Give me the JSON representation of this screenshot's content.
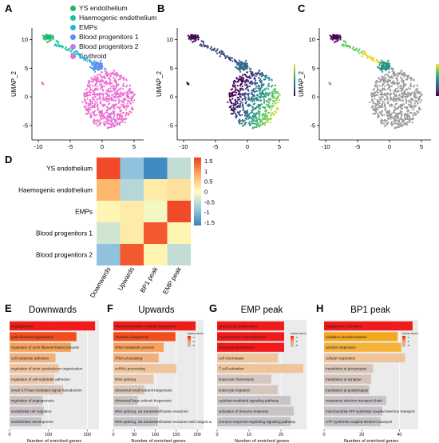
{
  "panels": {
    "A": "A",
    "B": "B",
    "C": "C",
    "D": "D",
    "E": "E",
    "F": "F",
    "G": "G",
    "H": "H"
  },
  "umap": {
    "xlabel": "UMAP_1",
    "ylabel": "UMAP_2",
    "xticks": [
      "-10",
      "-5",
      "0",
      "5"
    ],
    "yticks": [
      "10",
      "5",
      "0",
      "-5"
    ],
    "legend_A": [
      {
        "label": "YS endothelium",
        "color": "#1db86a"
      },
      {
        "label": "Haemogenic endothelium",
        "color": "#19c1a2"
      },
      {
        "label": "EMPs",
        "color": "#1fb6d9"
      },
      {
        "label": "Blood progenitors 1",
        "color": "#5b8ff0"
      },
      {
        "label": "Blood progenitors 2",
        "color": "#bd7ff5"
      },
      {
        "label": "Erythroid",
        "color": "#f06ccf"
      }
    ],
    "colorbar_B": [
      "20",
      "10",
      "0"
    ],
    "colorbar_C": [
      "8",
      "6",
      "4",
      "2",
      "0"
    ]
  },
  "chart_data": [
    {
      "type": "heatmap",
      "rows": [
        "YS endothelium",
        "Haemogenic endothelium",
        "EMPs",
        "Blood progenitors 1",
        "Blood progenitors 2"
      ],
      "columns": [
        "Downwards",
        "Upwards",
        "BP1 peak",
        "EMP peak"
      ],
      "values": [
        [
          1.5,
          -0.9,
          -1.5,
          -0.5
        ],
        [
          0.7,
          -0.6,
          0.2,
          0.3
        ],
        [
          0.1,
          0.2,
          -0.1,
          1.5
        ],
        [
          -0.4,
          0.2,
          1.4,
          0.1
        ],
        [
          -0.9,
          1.4,
          0.1,
          -0.5
        ]
      ],
      "colorbar_ticks": [
        "1.5",
        "1",
        "0.5",
        "0",
        "-0.5",
        "-1",
        "-1.5"
      ],
      "vmin": -1.6,
      "vmax": 1.6
    },
    {
      "type": "bar",
      "title": "Downwards",
      "xlabel": "Number of enriched genes",
      "xticks": [
        "0",
        "100",
        "200"
      ],
      "xlim": [
        0,
        230
      ],
      "categories": [
        "angiogenesis",
        "actin filament organization",
        "regulation of actin filament-based process",
        "cell-substrate adhesion",
        "regulation of actin cytoskeleton organization",
        "regulation of cell-substrate adhesion",
        "small GTPase mediated signal transduction",
        "regulation of angiogenesis",
        "endothelial cell migration",
        "endothelium development"
      ],
      "values": [
        220,
        172,
        158,
        118,
        126,
        115,
        138,
        85,
        88,
        82
      ]
    },
    {
      "type": "bar",
      "title": "Upwards",
      "xlabel": "Number of enriched genes",
      "xticks": [
        "0",
        "50",
        "100",
        "150",
        "200"
      ],
      "xlim": [
        0,
        215
      ],
      "categories": [
        "ribonucleoprotein complex biogenesis",
        "ribosome biogenesis",
        "rRNA metabolic process",
        "rRNA processing",
        "ncRNA processing",
        "RNA splicing",
        "ribosomal small subunit biogenesis",
        "ribosomal large subunit biogenesis",
        "RNA splicing, via transesterification reactions",
        "RNA splicing, via transesterification reactions with bulged adenosine as nucleophile"
      ],
      "values": [
        196,
        148,
        120,
        108,
        150,
        96,
        74,
        58,
        108,
        106
      ]
    },
    {
      "type": "bar",
      "title": "EMP peak",
      "xlabel": "Number of enriched genes",
      "xticks": [
        "0",
        "10",
        "20"
      ],
      "xlim": [
        0,
        28
      ],
      "categories": [
        "lymphocyte proliferation",
        "mononuclear cell proliferation",
        "leukocyte proliferation",
        "cell chemotaxis",
        "T cell activation",
        "leukocyte chemotaxis",
        "leukocyte migration",
        "cytokine-mediated signaling pathway",
        "activation of immune response",
        "immune response-regulating signaling pathway"
      ],
      "values": [
        21,
        21,
        21,
        19,
        27,
        17,
        19,
        23,
        24,
        23
      ]
    },
    {
      "type": "bar",
      "title": "BP1 peak",
      "xlabel": "Number of enriched genes",
      "xticks": [
        "0",
        "20",
        "40"
      ],
      "xlim": [
        0,
        50
      ],
      "categories": [
        "cytoplasmic translation",
        "oxidative phosphorylation",
        "aerobic respiration",
        "cellular respiration",
        "translation at presynapse",
        "translation at synapse",
        "translation at postsynapse",
        "respiratory electron transport chain",
        "mitochondrial ATP synthesis coupled electron transport",
        "ATP synthesis coupled electron transport"
      ],
      "values": [
        47,
        39,
        41,
        43,
        26,
        25,
        24,
        33,
        31,
        30
      ]
    }
  ],
  "go_legend": {
    "title": "log10(p.adjust)",
    "ticks": [
      "-4",
      "-6",
      "-8"
    ]
  }
}
